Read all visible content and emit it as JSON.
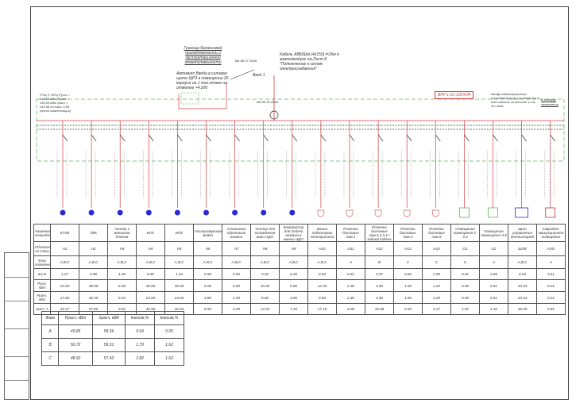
{
  "annotations": {
    "boundary": "Граница балансовой принадлежности и эксплуатационной ответственности",
    "main_breaker": "Автомат Ввода в силовом щите ЩР3 в помещении 26 корпуса на 1 тех.этаже на отметке +4,200",
    "breaker_top": "ВА-88-37 200А",
    "cable": "Кабель АВБбШв (4х150) l=25м в земле/воздухе см.Лист 8 \"Подключение к сетям электроснабжения\"",
    "input": "Ввод 1",
    "breaker_2": "ВА-88-35 250А",
    "grsh": "ГРЩ 3~50Гц Руст = 192,55 кВт Ррасч = 150,09 кВт Iрасч = 243,58 А cosφ= 0,85 (после компенсации)",
    "panel_name": "ВРУ-1-21-10УХЛ4",
    "panel_note": "Шкаф индивидуального исполнения Щит установить в тех.шахтах на высоте 1,6 м от пола",
    "grounding": "К контуру заземления"
  },
  "colors": {
    "feeder": "#d04040",
    "bus": "#333333",
    "boundary": "#5cb85c",
    "motor": "#2a2ad0"
  },
  "table": {
    "row_headers": [
      "Наименование потребителя",
      "Обозначение по плану",
      "Фаза подключения",
      "ΔU,%",
      "Руст, кВт",
      "Ррасч, кВт",
      "Iрасч, А"
    ],
    "columns": [
      {
        "name": "КТХВ",
        "code": "Н1",
        "phase": "A,B,C",
        "du": "1.27",
        "pust": "22.00",
        "prasch": "17.60",
        "irasch": "33.47",
        "load": "motor"
      },
      {
        "name": "ТВК",
        "code": "Н2",
        "phase": "A,B,C",
        "du": "0.98",
        "pust": "38.00",
        "prasch": "30.40",
        "irasch": "57.80",
        "load": "motor"
      },
      {
        "name": "Чиллер с внешним блоком",
        "code": "Н3",
        "phase": "A,B,C",
        "du": "1.05",
        "pust": "6.30",
        "prasch": "5.04",
        "irasch": "9.02",
        "load": "motor"
      },
      {
        "name": "ИП1",
        "code": "Н4",
        "phase": "A,B,C",
        "du": "0.92",
        "pust": "30.00",
        "prasch": "24.00",
        "irasch": "40.56",
        "load": "motor"
      },
      {
        "name": "ИП2",
        "code": "Н5",
        "phase": "A,B,C",
        "du": "1.04",
        "pust": "30.00",
        "prasch": "24.00",
        "irasch": "40.56",
        "load": "motor"
      },
      {
        "name": "Ультразвуковая мойка",
        "code": "Н6",
        "phase": "A,B,C",
        "du": "0.50",
        "pust": "6.00",
        "prasch": "4.80",
        "irasch": "8.59",
        "load": "motor"
      },
      {
        "name": "Установка обратного осмоса",
        "code": "Н7",
        "phase": "A,B,C",
        "du": "0.50",
        "pust": "5.00",
        "prasch": "2.40",
        "irasch": "4.29",
        "load": "motor"
      },
      {
        "name": "Чиллер для охлаждения ванн НДО",
        "code": "Н8",
        "phase": "A,B,C",
        "du": "0.35",
        "pust": "10.00",
        "prasch": "8.00",
        "irasch": "14.32",
        "load": "motor"
      },
      {
        "name": "Компрессор для подачи воздуха в ванны НДО",
        "code": "Н9",
        "phase": "A,B,C",
        "du": "0.28",
        "pust": "5.00",
        "prasch": "4.00",
        "irasch": "7.16",
        "load": "motor"
      },
      {
        "name": "Ванна подготовки электролита",
        "code": "Н10",
        "phase": "A,B,C",
        "du": "0.63",
        "pust": "12.00",
        "prasch": "9.60",
        "irasch": "17.18",
        "load": "socket"
      },
      {
        "name": "Розетки бытовые пом.1",
        "code": "Н11",
        "phase": "A",
        "du": "0.51",
        "pust": "2.30",
        "prasch": "2.30",
        "irasch": "6.08",
        "load": "socket"
      },
      {
        "name": "Розетки бытовые пом.2,3,3.1+ задний кабель",
        "code": "Н12",
        "phase": "B",
        "du": "4.07",
        "pust": "4.00",
        "prasch": "4.00",
        "irasch": "10.58",
        "load": "socket"
      },
      {
        "name": "Розетки бытовые пом.4",
        "code": "Н13",
        "phase": "C",
        "du": "0.83",
        "pust": "1.00",
        "prasch": "1.00",
        "irasch": "2.65",
        "load": "socket"
      },
      {
        "name": "Розетки бытовые пом.5",
        "code": "Н14",
        "phase": "C",
        "du": "2.00",
        "pust": "1.20",
        "prasch": "1.20",
        "irasch": "3.17",
        "load": "socket"
      },
      {
        "name": "Освещение помещения 1-3.3",
        "code": "О1",
        "phase": "C",
        "du": "0.01",
        "pust": "0.59",
        "prasch": "0.59",
        "irasch": "1.52",
        "load": "light"
      },
      {
        "name": "Освещение помещения 4,5",
        "code": "О2",
        "phase": "A",
        "du": "2.85",
        "pust": "0.51",
        "prasch": "0.51",
        "irasch": "1.32",
        "load": "light"
      },
      {
        "name": "Щит управления вентиляцией",
        "code": "ШУВ",
        "phase": "A,B,C",
        "du": "0.43",
        "pust": "10.33",
        "prasch": "10.33",
        "irasch": "18.49",
        "load": "panel"
      },
      {
        "name": "Аварийно-эвакуационное освещение",
        "code": "АЭО",
        "phase": "A",
        "du": "0.11",
        "pust": "0.31",
        "prasch": "0.31",
        "irasch": "0.81",
        "load": "emergency"
      }
    ]
  },
  "phase_table": {
    "headers": [
      "Фаза",
      "Ррасч, кВт",
      "Sрасч, кВА",
      "kнесим,%",
      "kнесим,%"
    ],
    "rows": [
      [
        "A",
        "49.85",
        "58.36",
        "0.04",
        "0.00"
      ],
      [
        "B",
        "50.72",
        "59.31",
        "1.79",
        "1.62"
      ],
      [
        "C",
        "48.92",
        "57.42",
        "1.82",
        "1.62"
      ]
    ]
  }
}
